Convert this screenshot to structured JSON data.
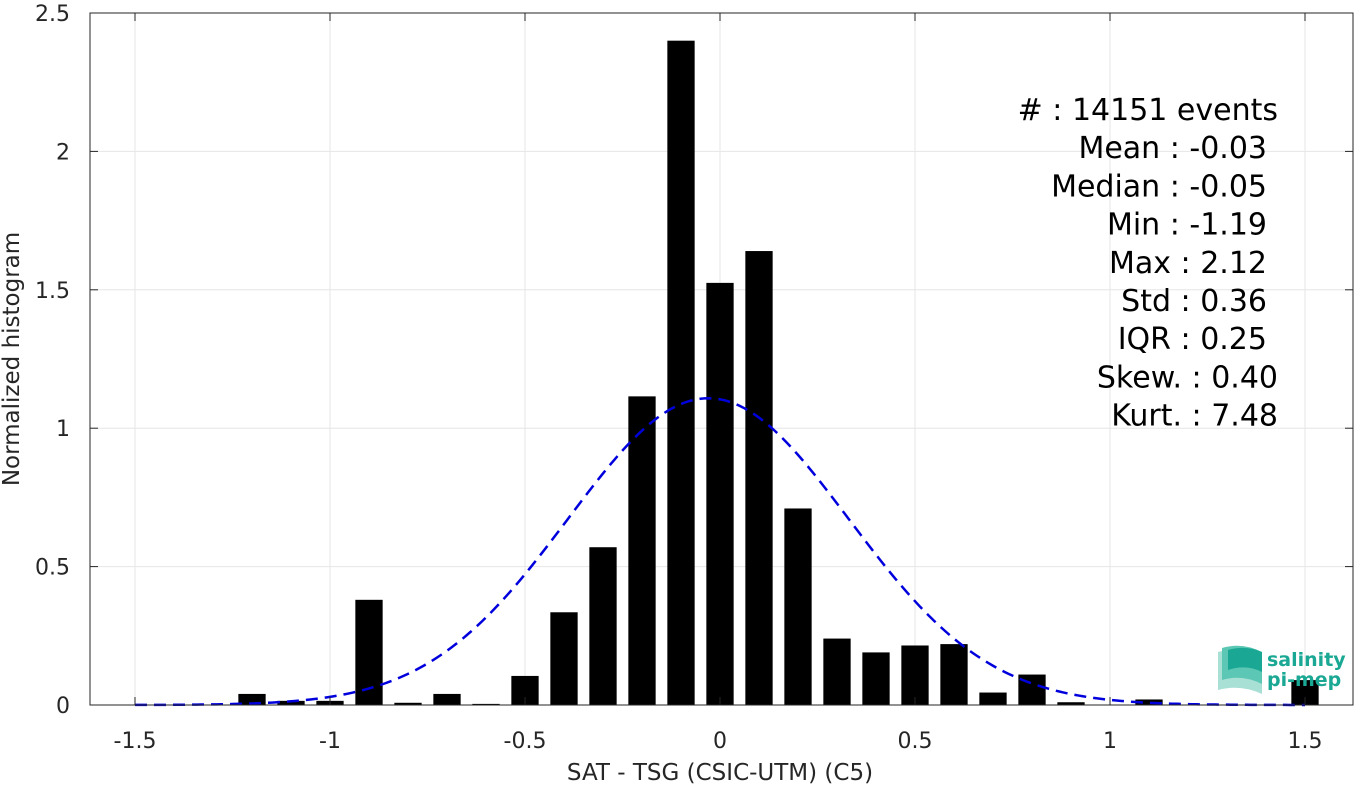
{
  "chart_data": {
    "type": "bar",
    "xlabel": "SAT - TSG (CSIC-UTM) (C5)",
    "ylabel": "Normalized histogram",
    "xlim": [
      -1.5,
      1.5
    ],
    "ylim": [
      0,
      2.5
    ],
    "x_ticks": [
      "-1.5",
      "-1",
      "-0.5",
      "0",
      "0.5",
      "1",
      "1.5"
    ],
    "y_ticks": [
      "0",
      "0.5",
      "1",
      "1.5",
      "2",
      "2.5"
    ],
    "grid": true,
    "bar_width": 0.07,
    "bins": [
      -1.2,
      -1.1,
      -1.0,
      -0.9,
      -0.8,
      -0.7,
      -0.6,
      -0.5,
      -0.4,
      -0.3,
      -0.2,
      -0.1,
      0.0,
      0.1,
      0.2,
      0.3,
      0.4,
      0.5,
      0.6,
      0.7,
      0.8,
      0.9,
      1.0,
      1.1,
      1.2,
      1.3,
      1.4,
      1.5
    ],
    "values": [
      0.04,
      0.015,
      0.015,
      0.38,
      0.008,
      0.04,
      0.004,
      0.105,
      0.335,
      0.57,
      1.115,
      2.4,
      1.525,
      1.64,
      0.71,
      0.24,
      0.19,
      0.215,
      0.22,
      0.045,
      0.11,
      0.01,
      0.0,
      0.02,
      0.0,
      0.0,
      0.0,
      0.09
    ],
    "bar_color": "#000000",
    "fit_curve": {
      "style": "dashed",
      "color": "#0000dd",
      "mean": -0.03,
      "std": 0.36
    },
    "stats": [
      "#  : 14151 events",
      "Mean : -0.03",
      "Median : -0.05",
      "Min : -1.19",
      "Max : 2.12",
      "Std : 0.36",
      "IQR : 0.25",
      "Skew. : 0.40",
      "Kurt. : 7.48"
    ]
  },
  "logo": {
    "line1": "salinity",
    "line2": "pi-mep",
    "color": "#1aa894"
  }
}
